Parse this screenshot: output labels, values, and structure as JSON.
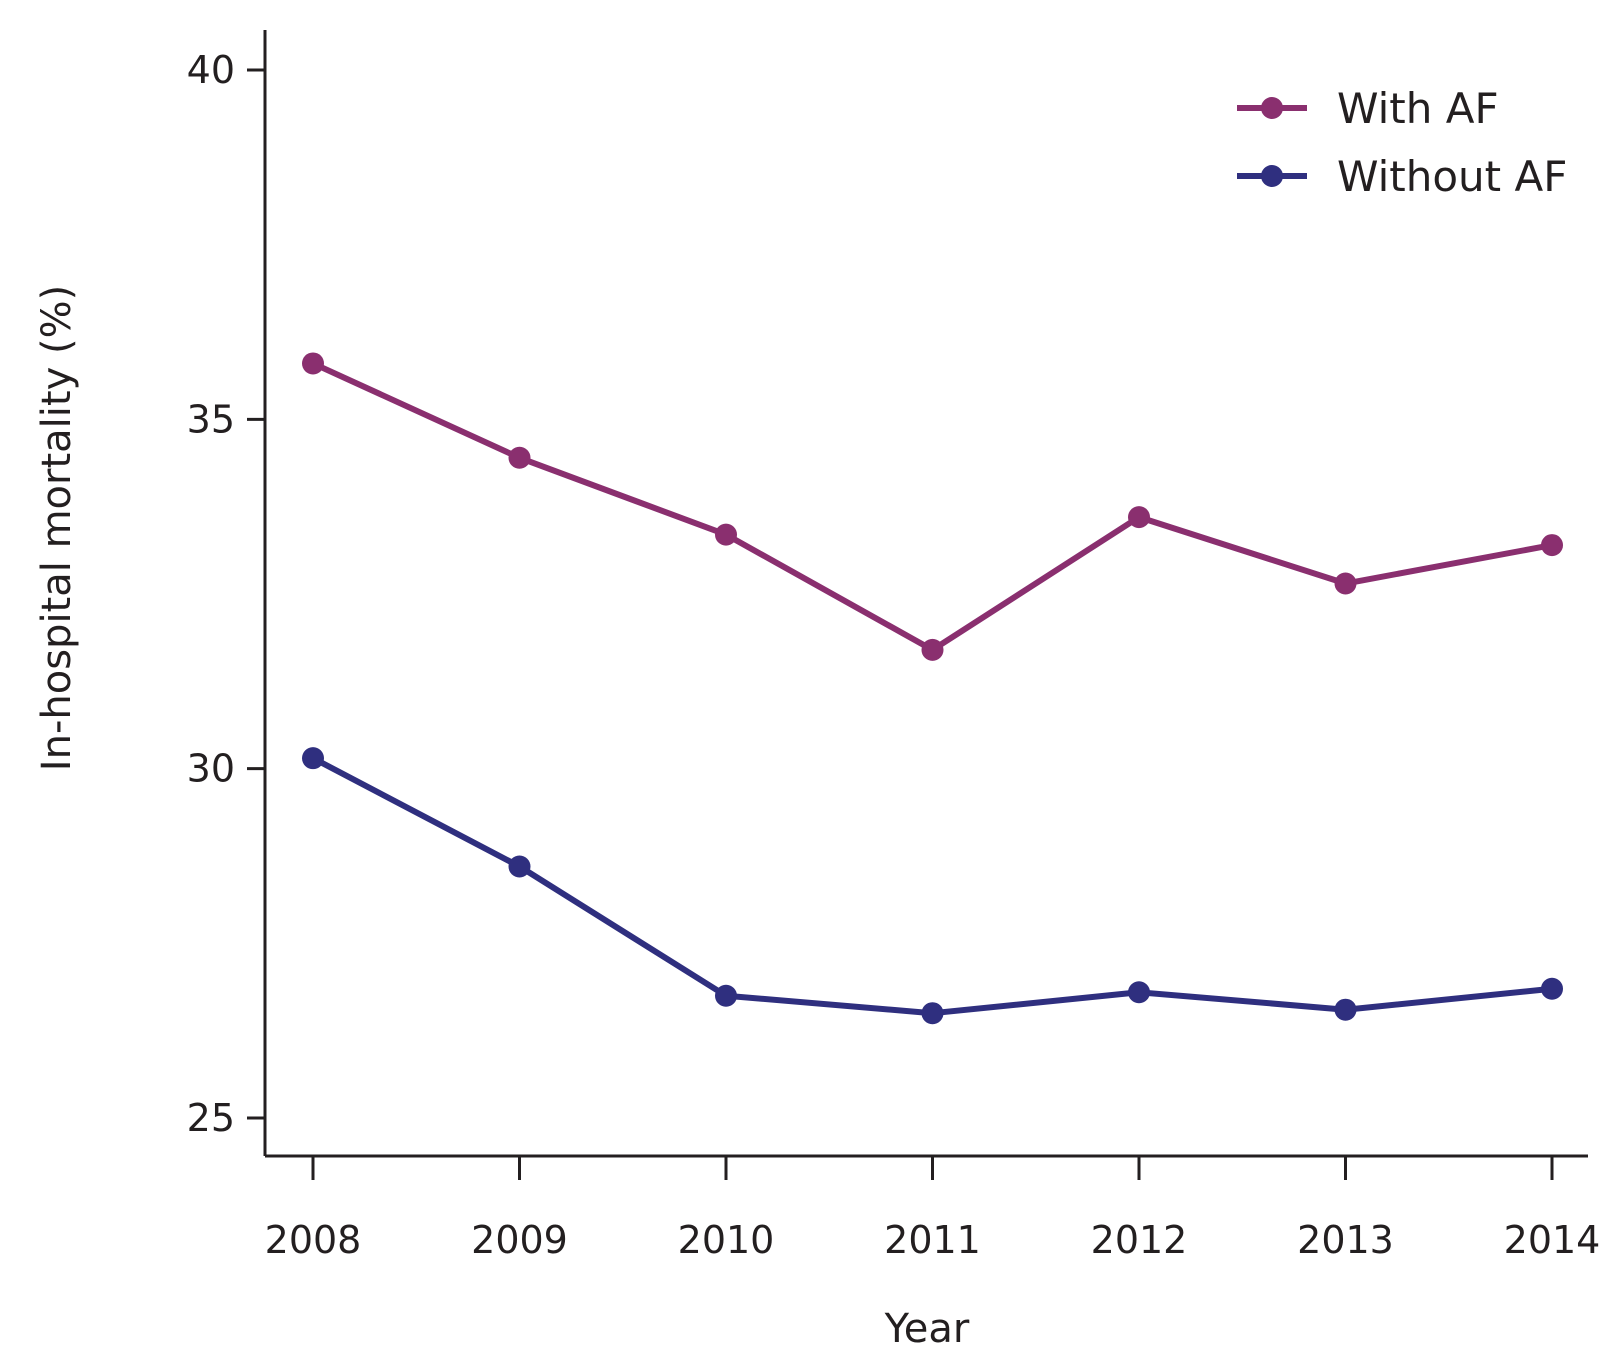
{
  "chart_data": {
    "type": "line",
    "title": "",
    "xlabel": "Year",
    "ylabel": "In-hospital mortality (%)",
    "categories": [
      "2008",
      "2009",
      "2010",
      "2011",
      "2012",
      "2013",
      "2014"
    ],
    "ylim": [
      24.6,
      40.6
    ],
    "yticks": [
      "25",
      "30",
      "35",
      "40"
    ],
    "grid": false,
    "legend_position": "top-right",
    "series": [
      {
        "name": "With AF",
        "color": "#8a2f6f",
        "values": [
          35.8,
          34.45,
          33.35,
          31.7,
          33.6,
          32.65,
          33.2
        ]
      },
      {
        "name": "Without AF",
        "color": "#2f2f7f",
        "values": [
          30.15,
          28.6,
          26.75,
          26.5,
          26.8,
          26.55,
          26.85
        ]
      }
    ]
  }
}
